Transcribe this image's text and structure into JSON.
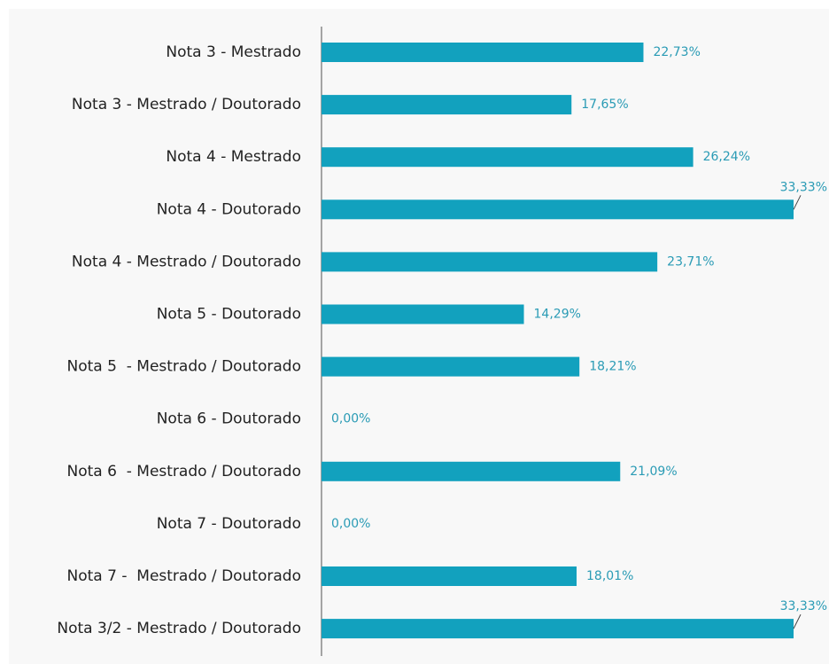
{
  "chart_data": {
    "type": "barh",
    "categories": [
      "Nota 3 - Mestrado",
      "Nota 3 - Mestrado / Doutorado",
      "Nota 4 - Mestrado",
      "Nota 4 - Doutorado",
      "Nota 4 - Mestrado / Doutorado",
      "Nota 5 - Doutorado",
      "Nota 5  - Mestrado / Doutorado",
      "Nota 6 - Doutorado",
      "Nota 6  - Mestrado / Doutorado",
      "Nota 7 - Doutorado",
      "Nota 7 -  Mestrado / Doutorado",
      "Nota 3/2 - Mestrado / Doutorado"
    ],
    "values": [
      22.73,
      17.65,
      26.24,
      33.33,
      23.71,
      14.29,
      18.21,
      0,
      21.09,
      0,
      18.01,
      33.33
    ],
    "value_labels": [
      "22,73%",
      "17,65%",
      "26,24%",
      "33,33%",
      "23,71%",
      "14,29%",
      "18,21%",
      "0,00%",
      "21,09%",
      "0,00%",
      "18,01%",
      "33,33%"
    ],
    "color": "#12a1be"
  }
}
